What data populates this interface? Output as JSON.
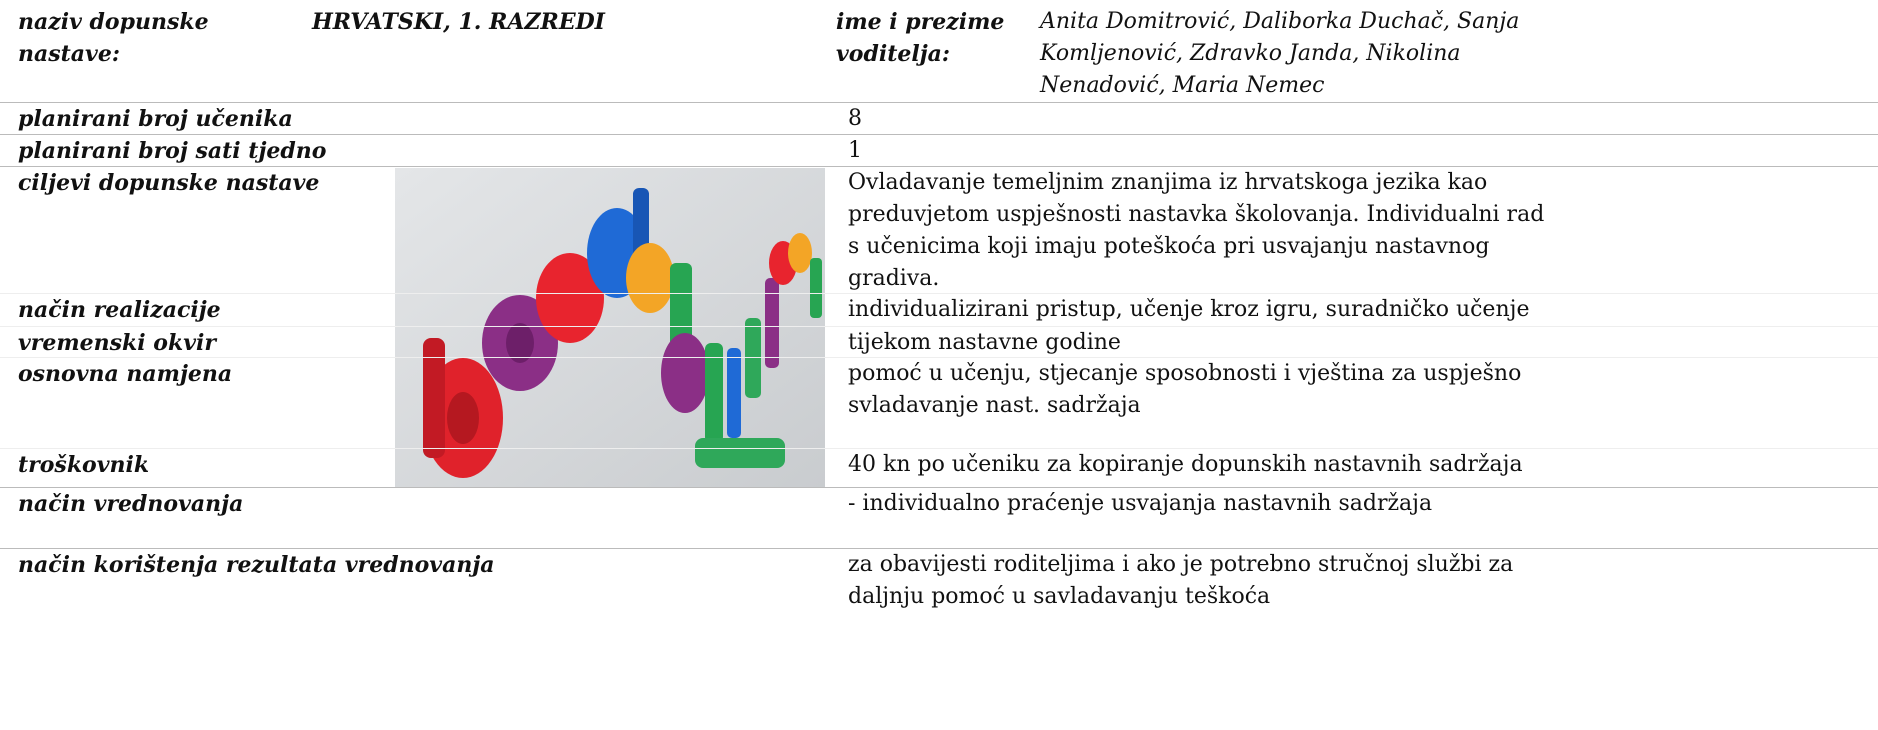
{
  "header": {
    "title_label": "naziv dopunske nastave:",
    "title": "HRVATSKI, 1. RAZREDI",
    "leader_label": "ime i prezime voditelja:",
    "leader": "Anita Domitrović, Daliborka Duchač, Sanja\nKomljenović, Zdravko Janda, Nikolina\nNenadović, Maria Nemec"
  },
  "rows": [
    [
      "planirani broj učenika",
      8
    ],
    [
      "planirani broj sati tjedno",
      1
    ],
    [
      "ciljevi dopunske nastave",
      "Ovladavanje temeljnim znanjima iz hrvatskoga jezika kao\npreduvjetom uspješnosti nastavka školovanja. Individualni rad\ns učenicima koji imaju poteškoća pri usvajanju nastavnog\ngradiva."
    ],
    [
      "način realizacije",
      "individualizirani pristup, učenje kroz igru, suradničko učenje"
    ],
    [
      "vremenski okvir",
      "tijekom nastavne godine"
    ],
    [
      "osnovna namjena",
      "pomoć u učenju, stjecanje sposobnosti i vještina za uspješno\nsvladavanje nast. sadržaja"
    ],
    [
      "troškovnik",
      "40 kn po učeniku za kopiranje dopunskih nastavnih sadržaja"
    ],
    [
      "način vrednovanja",
      "- individualno praćenje usvajanja nastavnih sadržaja"
    ],
    [
      "način korištenja rezultata vrednovanja",
      "za obavijesti roditeljima i ako je potrebno stručnoj službi za\ndaljnju pomoć u savladavanju teškoća"
    ]
  ]
}
